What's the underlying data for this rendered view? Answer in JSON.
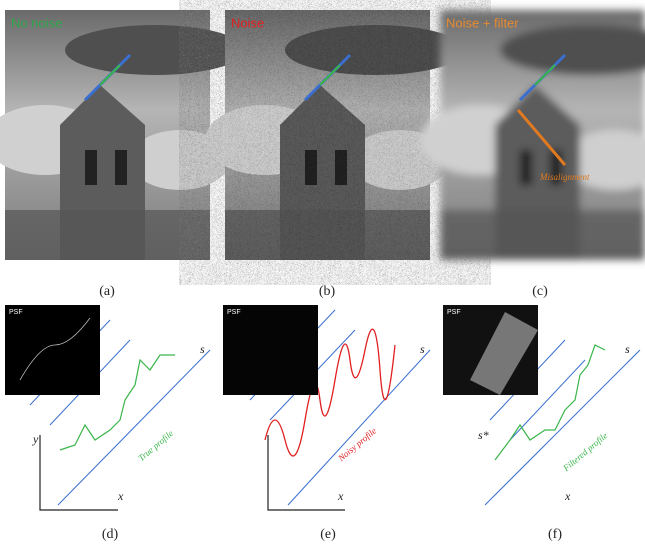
{
  "panels": [
    {
      "label": "No noise",
      "caption": "(a)"
    },
    {
      "label": "Noise",
      "caption": "(b)"
    },
    {
      "label": "Noise + filter",
      "caption": "(c)",
      "annotation": "Misalignment"
    }
  ],
  "diagrams": [
    {
      "inset": "PSF",
      "caption": "(d)",
      "axis_y": "y",
      "axis_x": "x",
      "axis_s": "s",
      "profile": "True profile"
    },
    {
      "inset": "PSF",
      "caption": "(e)",
      "axis_x": "x",
      "axis_s": "s",
      "profile": "Noisy profile"
    },
    {
      "inset": "PSF",
      "caption": "(f)",
      "axis_x": "x",
      "axis_s": "s",
      "marker": "s*",
      "profile": "Filtered profile"
    }
  ]
}
